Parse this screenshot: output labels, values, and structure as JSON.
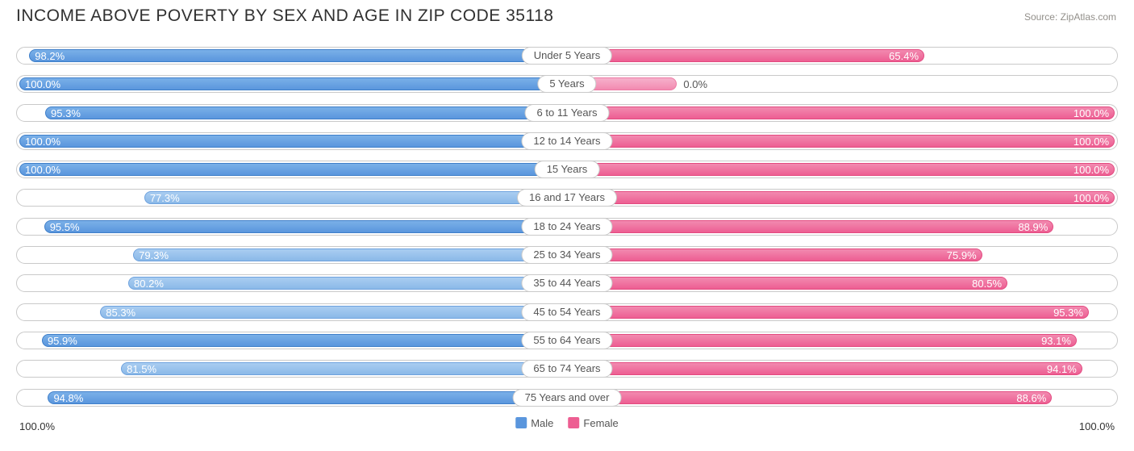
{
  "title": "INCOME ABOVE POVERTY BY SEX AND AGE IN ZIP CODE 35118",
  "source": "Source: ZipAtlas.com",
  "axis": {
    "left": "100.0%",
    "right": "100.0%"
  },
  "legend": {
    "male": "Male",
    "female": "Female"
  },
  "colors": {
    "male": "#5a96dd",
    "male_light": "#8bb9e8",
    "female": "#ed5e92",
    "female_light": "#f28ab0",
    "track_border": "#c9c9c9",
    "text_dark": "#303030",
    "text_mid": "#555555",
    "source_text": "#928f8a",
    "background": "#ffffff"
  },
  "chart": {
    "type": "diverging-bar",
    "max": 100.0,
    "light_threshold": 90.0,
    "rows": [
      {
        "category": "Under 5 Years",
        "male": 98.2,
        "female": 65.4
      },
      {
        "category": "5 Years",
        "male": 100.0,
        "female": 0.0
      },
      {
        "category": "6 to 11 Years",
        "male": 95.3,
        "female": 100.0
      },
      {
        "category": "12 to 14 Years",
        "male": 100.0,
        "female": 100.0
      },
      {
        "category": "15 Years",
        "male": 100.0,
        "female": 100.0
      },
      {
        "category": "16 and 17 Years",
        "male": 77.3,
        "female": 100.0
      },
      {
        "category": "18 to 24 Years",
        "male": 95.5,
        "female": 88.9
      },
      {
        "category": "25 to 34 Years",
        "male": 79.3,
        "female": 75.9
      },
      {
        "category": "35 to 44 Years",
        "male": 80.2,
        "female": 80.5
      },
      {
        "category": "45 to 54 Years",
        "male": 85.3,
        "female": 95.3
      },
      {
        "category": "55 to 64 Years",
        "male": 95.9,
        "female": 93.1
      },
      {
        "category": "65 to 74 Years",
        "male": 81.5,
        "female": 94.1
      },
      {
        "category": "75 Years and over",
        "male": 94.8,
        "female": 88.6
      }
    ]
  }
}
